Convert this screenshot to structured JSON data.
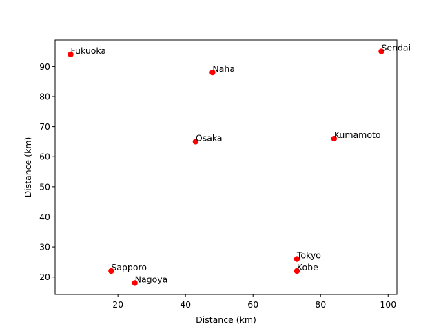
{
  "chart_data": {
    "type": "scatter",
    "title": "",
    "xlabel": "Distance (km)",
    "ylabel": "Distance (km)",
    "xlim": [
      1.4,
      102.6
    ],
    "ylim": [
      14.2,
      98.8
    ],
    "xticks": [
      20,
      40,
      60,
      80,
      100
    ],
    "yticks": [
      20,
      30,
      40,
      50,
      60,
      70,
      80,
      90
    ],
    "grid": false,
    "marker_color": "#ff0000",
    "points": [
      {
        "label": "Fukuoka",
        "x": 6,
        "y": 94
      },
      {
        "label": "Sendai",
        "x": 98,
        "y": 95
      },
      {
        "label": "Naha",
        "x": 48,
        "y": 88
      },
      {
        "label": "Kumamoto",
        "x": 84,
        "y": 66
      },
      {
        "label": "Osaka",
        "x": 43,
        "y": 65
      },
      {
        "label": "Tokyo",
        "x": 73,
        "y": 26
      },
      {
        "label": "Kobe",
        "x": 73,
        "y": 22
      },
      {
        "label": "Sapporo",
        "x": 18,
        "y": 22
      },
      {
        "label": "Nagoya",
        "x": 25,
        "y": 18
      }
    ]
  }
}
